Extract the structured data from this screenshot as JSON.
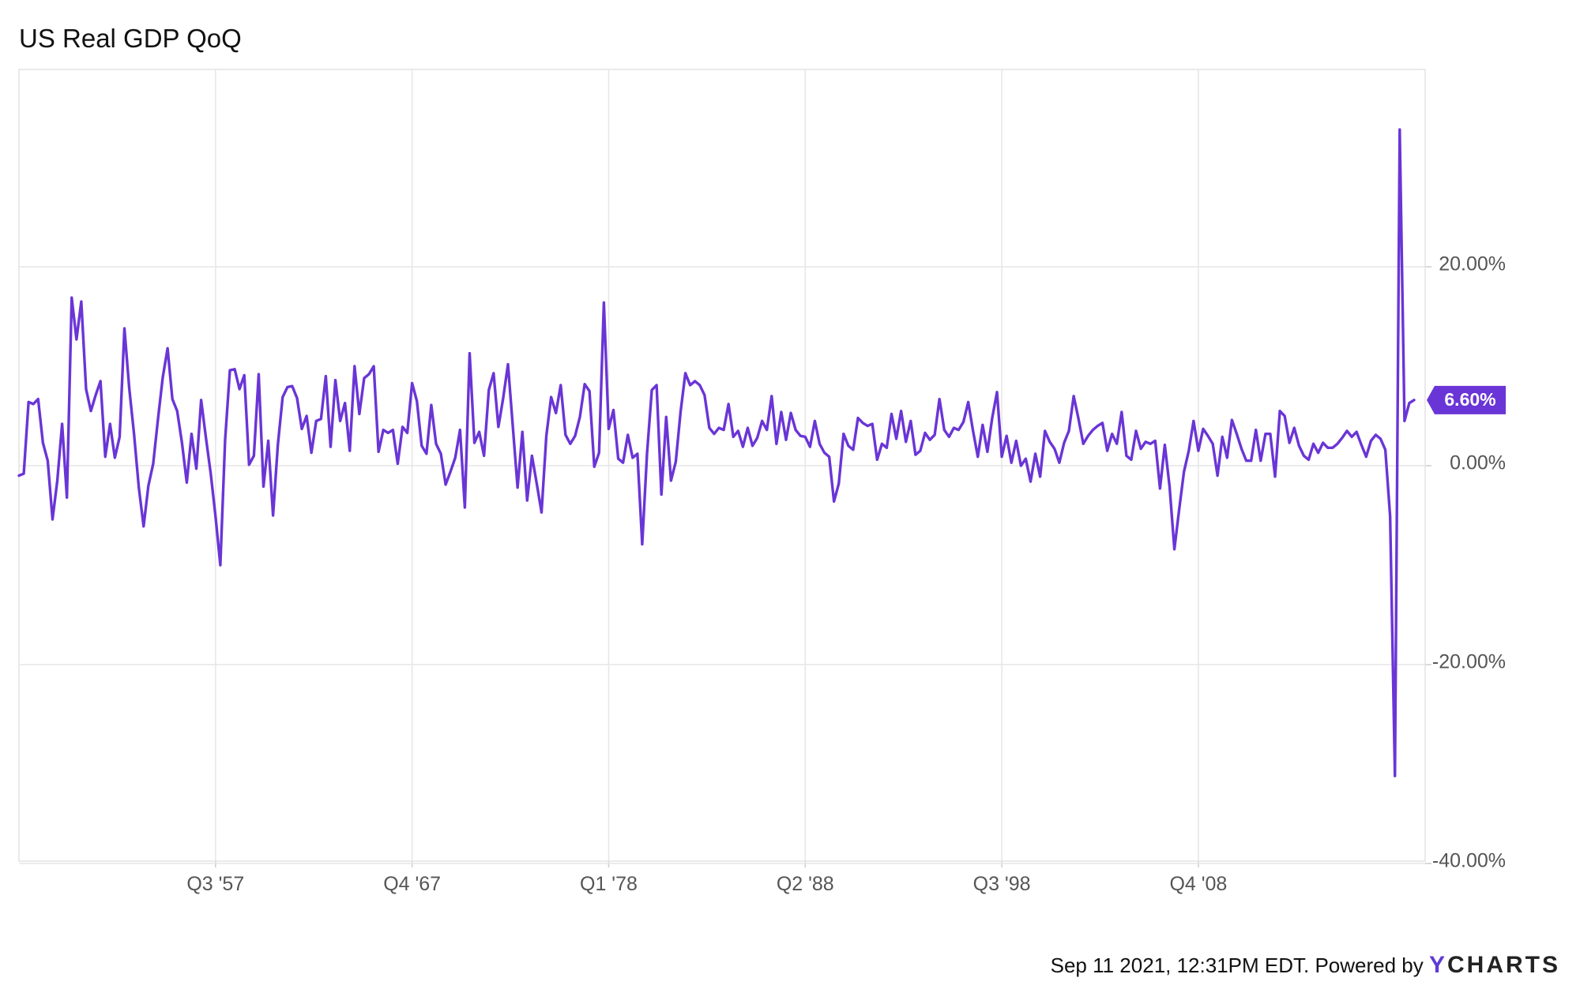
{
  "chart_data": {
    "type": "line",
    "title": "US Real GDP QoQ",
    "series": [
      {
        "color": "#6a35d6",
        "start_quarter": "Q2 1947",
        "values": [
          -1.0,
          -0.8,
          6.4,
          6.2,
          6.7,
          2.3,
          0.5,
          -5.4,
          -1.5,
          4.2,
          -3.2,
          16.9,
          12.7,
          16.5,
          7.7,
          5.5,
          7.1,
          8.5,
          0.9,
          4.2,
          0.8,
          2.9,
          13.8,
          7.8,
          3.2,
          -2.2,
          -6.1,
          -2.0,
          0.2,
          4.7,
          8.9,
          11.8,
          6.7,
          5.5,
          2.3,
          -1.7,
          3.2,
          -0.3,
          6.6,
          2.8,
          -0.8,
          -5.1,
          -10.0,
          2.6,
          9.6,
          9.7,
          7.7,
          9.1,
          0.1,
          1.0,
          9.2,
          -2.1,
          2.5,
          -5.0,
          2.1,
          6.9,
          7.9,
          8.0,
          6.8,
          3.7,
          5.0,
          1.3,
          4.5,
          4.7,
          9.0,
          1.9,
          8.6,
          4.5,
          6.3,
          1.5,
          10.0,
          5.2,
          8.8,
          9.2,
          10.0,
          1.4,
          3.6,
          3.3,
          3.6,
          0.2,
          3.9,
          3.3,
          8.3,
          6.5,
          2.0,
          1.2,
          6.1,
          2.2,
          1.2,
          -1.9,
          -0.6,
          0.8,
          3.6,
          -4.2,
          11.3,
          2.3,
          3.4,
          1.0,
          7.6,
          9.3,
          3.9,
          6.8,
          10.2,
          4.0,
          -2.2,
          3.4,
          -3.5,
          1.0,
          -1.8,
          -4.7,
          3.0,
          6.9,
          5.3,
          8.1,
          3.1,
          2.2,
          3.0,
          4.9,
          8.2,
          7.5,
          -0.1,
          1.3,
          16.4,
          3.7,
          5.6,
          0.7,
          0.3,
          3.1,
          0.8,
          1.2,
          -7.9,
          1.2,
          7.6,
          8.1,
          -2.9,
          4.9,
          -1.5,
          0.4,
          5.4,
          9.3,
          8.1,
          8.5,
          8.1,
          7.1,
          3.8,
          3.2,
          3.8,
          3.6,
          6.2,
          2.9,
          3.5,
          1.9,
          3.8,
          2.0,
          2.8,
          4.5,
          3.6,
          7.0,
          2.2,
          5.4,
          2.6,
          5.3,
          3.6,
          3.0,
          2.9,
          1.9,
          4.5,
          2.2,
          1.3,
          0.9,
          -3.6,
          -1.8,
          3.2,
          2.0,
          1.6,
          4.8,
          4.3,
          4.0,
          4.2,
          0.6,
          2.2,
          1.8,
          5.2,
          2.7,
          5.5,
          2.4,
          4.5,
          1.1,
          1.5,
          3.3,
          2.6,
          3.1,
          6.7,
          3.6,
          2.9,
          3.8,
          3.6,
          4.4,
          6.4,
          3.5,
          0.9,
          4.1,
          1.4,
          4.8,
          7.4,
          0.9,
          3.0,
          0.3,
          2.5,
          0.0,
          0.7,
          -1.6,
          1.2,
          -1.1,
          3.5,
          2.4,
          1.7,
          0.3,
          2.3,
          3.5,
          7.0,
          4.7,
          2.2,
          3.0,
          3.6,
          4.0,
          4.3,
          1.5,
          3.2,
          2.2,
          5.4,
          1.0,
          0.6,
          3.5,
          1.7,
          2.4,
          2.2,
          2.5,
          -2.3,
          2.1,
          -2.1,
          -8.4,
          -4.4,
          -0.6,
          1.5,
          4.5,
          1.5,
          3.7,
          3.0,
          2.2,
          -1.0,
          2.9,
          0.8,
          4.6,
          3.2,
          1.7,
          0.5,
          0.5,
          3.6,
          0.5,
          3.2,
          3.2,
          -1.1,
          5.5,
          5.0,
          2.3,
          3.8,
          2.0,
          1.0,
          0.6,
          2.2,
          1.3,
          2.3,
          1.8,
          1.8,
          2.2,
          2.8,
          3.5,
          2.9,
          3.4,
          2.1,
          0.9,
          2.5,
          3.1,
          2.7,
          1.6,
          -5.1,
          -31.2,
          33.8,
          4.5,
          6.3,
          6.6
        ]
      }
    ],
    "x_ticks": [
      "Q3 '57",
      "Q4 '67",
      "Q1 '78",
      "Q2 '88",
      "Q3 '98",
      "Q4 '08"
    ],
    "y_ticks": [
      {
        "value": 20,
        "label": "20.00%"
      },
      {
        "value": 0,
        "label": "0.00%"
      },
      {
        "value": -20,
        "label": "-20.00%"
      },
      {
        "value": -40,
        "label": "-40.00%"
      }
    ],
    "ylim": [
      -40,
      40
    ],
    "last_value_label": "6.60%",
    "grid": true,
    "y_axis_position": "right"
  },
  "footer": {
    "text": "Sep 11 2021, 12:31PM EDT.  Powered by ",
    "brand_first": "Y",
    "brand_rest": "CHARTS"
  }
}
